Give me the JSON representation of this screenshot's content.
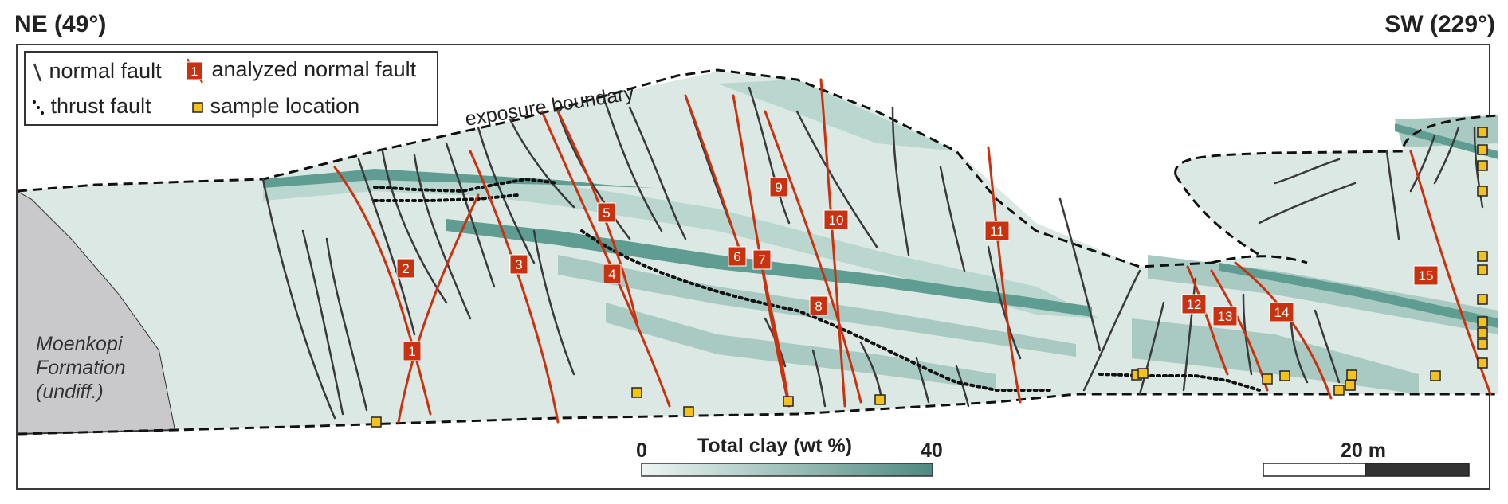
{
  "header": {
    "left": "NE (49°)",
    "right": "SW (229°)"
  },
  "legend": {
    "normal_fault": "normal fault",
    "analyzed_normal_fault": "analyzed normal fault",
    "analyzed_marker": "1",
    "thrust_fault": "thrust fault",
    "sample_location": "sample location"
  },
  "annotations": {
    "exposure_boundary": "exposure boundary",
    "formation_line1": "Moenkopi",
    "formation_line2": "Formation",
    "formation_line3": "(undiff.)"
  },
  "fault_labels": [
    "1",
    "2",
    "3",
    "4",
    "5",
    "6",
    "7",
    "8",
    "9",
    "10",
    "11",
    "12",
    "13",
    "14",
    "15"
  ],
  "colorbar": {
    "title": "Total clay (wt %)",
    "min": "0",
    "max": "40",
    "color_min": "#eef5f3",
    "color_max": "#4e8a80"
  },
  "scalebar": {
    "label": "20 m"
  },
  "colors": {
    "analyzed_fault": "#c8320f",
    "normal_fault": "#3a3a3a",
    "sample": "#f5c21b",
    "outcrop": "#dbe8e4",
    "clay_band": "#a9cac3",
    "clay_band_dark": "#5f9d92",
    "moenkopi": "#c9c9cc"
  }
}
